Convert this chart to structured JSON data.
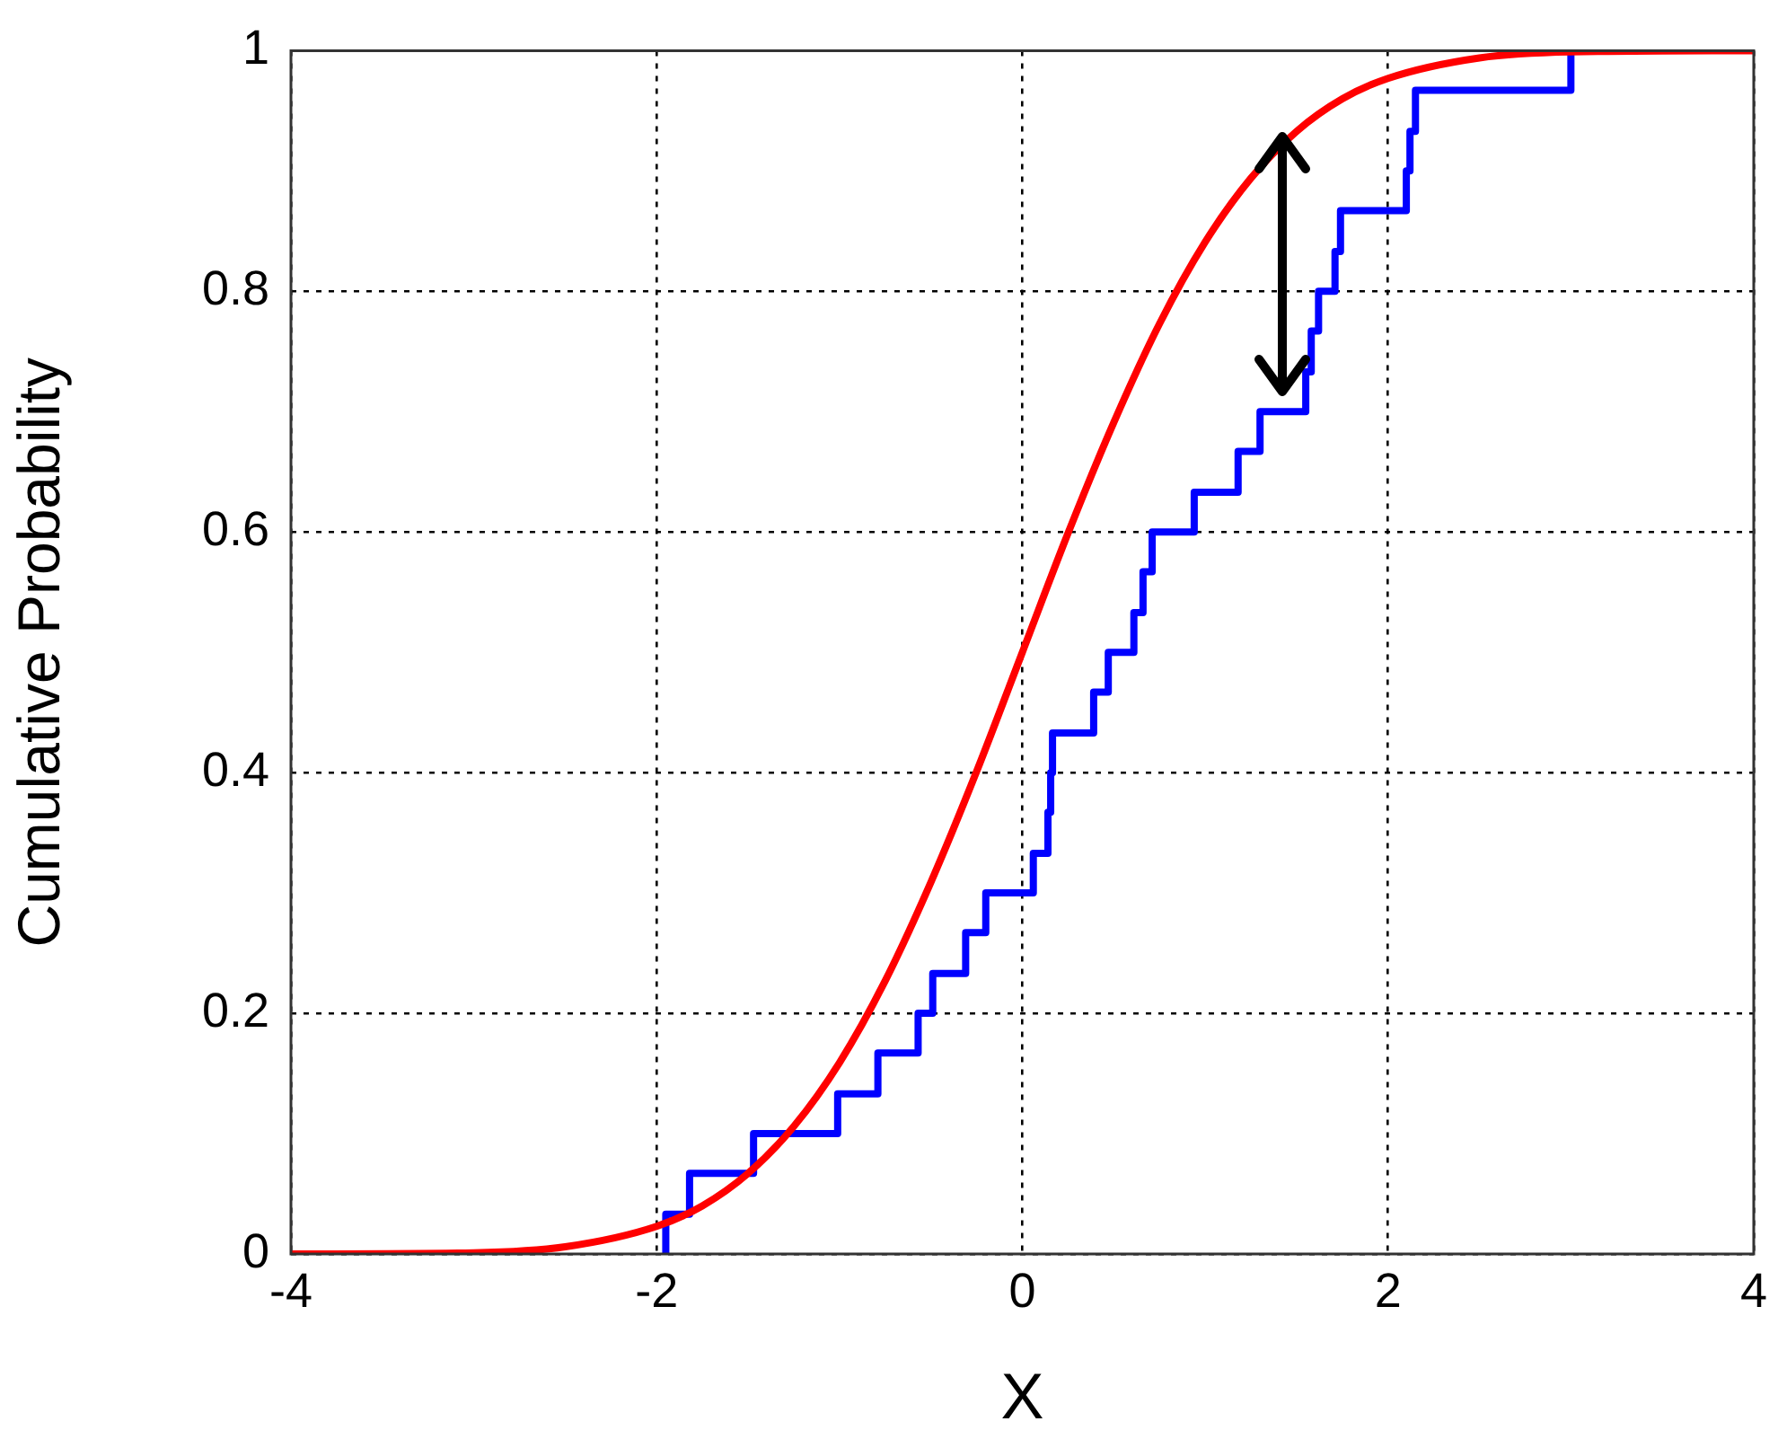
{
  "chart_data": {
    "type": "line",
    "xlabel": "X",
    "ylabel": "Cumulative Probability",
    "xlim": [
      -4,
      4
    ],
    "xticks": [
      -4,
      -2,
      0,
      2,
      4
    ],
    "ylim": [
      0,
      1
    ],
    "yticks": [
      0,
      0.2,
      0.4,
      0.6,
      0.8,
      1
    ],
    "grid": true,
    "legend": false,
    "marker": "none",
    "line_style": "solid",
    "series": [
      {
        "type": "step",
        "color": "#0000ff",
        "x": [
          -1.95,
          -1.95,
          -1.82,
          -1.47,
          -1.01,
          -0.79,
          -0.57,
          -0.49,
          -0.31,
          -0.2,
          0.06,
          0.14,
          0.155,
          0.165,
          0.39,
          0.47,
          0.61,
          0.66,
          0.71,
          0.94,
          1.18,
          1.3,
          1.55,
          1.58,
          1.62,
          1.71,
          1.74,
          2.1,
          2.12,
          2.15,
          3.0
        ],
        "values": [
          0,
          0.033,
          0.067,
          0.1,
          0.133,
          0.167,
          0.2,
          0.233,
          0.267,
          0.3,
          0.333,
          0.367,
          0.4,
          0.433,
          0.467,
          0.5,
          0.533,
          0.567,
          0.6,
          0.633,
          0.667,
          0.7,
          0.733,
          0.767,
          0.8,
          0.833,
          0.867,
          0.9,
          0.933,
          0.967,
          1
        ]
      },
      {
        "type": "line",
        "color": "#ff0000",
        "x": [
          -4,
          -3,
          -2.5,
          -2,
          -1.75,
          -1.5,
          -1.25,
          -1,
          -0.75,
          -0.5,
          -0.25,
          0,
          0.25,
          0.5,
          0.75,
          1,
          1.25,
          1.5,
          1.75,
          2,
          2.5,
          3,
          4
        ],
        "values": [
          0,
          0.001,
          0.006,
          0.023,
          0.04,
          0.067,
          0.106,
          0.159,
          0.227,
          0.309,
          0.401,
          0.5,
          0.599,
          0.691,
          0.773,
          0.841,
          0.894,
          0.933,
          0.96,
          0.977,
          0.994,
          0.999,
          1
        ]
      }
    ]
  }
}
